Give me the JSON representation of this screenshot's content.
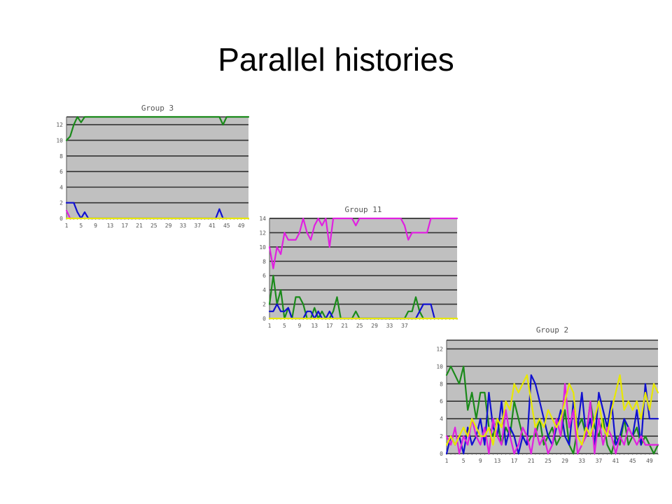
{
  "slide": {
    "title": "Parallel histories"
  },
  "chart_data": [
    {
      "type": "line",
      "title": "Group 3",
      "xlabel": "",
      "ylabel": "",
      "x_ticks": [
        "1",
        "5",
        "9",
        "13",
        "17",
        "21",
        "25",
        "29",
        "33",
        "37",
        "41",
        "45",
        "49"
      ],
      "y_ticks": [
        "0",
        "2",
        "4",
        "6",
        "8",
        "10",
        "12"
      ],
      "ylim": [
        0,
        13
      ],
      "xlim": [
        1,
        51
      ],
      "grid": true,
      "background": "#c0c0c0",
      "series": [
        {
          "color": "#1a8a1a",
          "x": [
            1,
            2,
            3,
            4,
            5,
            6,
            43,
            44,
            45,
            51
          ],
          "y": [
            10,
            10.5,
            12,
            13,
            12.3,
            13,
            13,
            12,
            13,
            13
          ]
        },
        {
          "color": "#1010d0",
          "x": [
            1,
            2,
            3,
            4,
            5,
            6,
            7,
            42,
            43,
            44,
            45
          ],
          "y": [
            2,
            2,
            2,
            0.8,
            0,
            0.8,
            0,
            0,
            1.2,
            0,
            0
          ]
        },
        {
          "color": "#e020e0",
          "x": [
            1,
            2,
            3
          ],
          "y": [
            1,
            0,
            0
          ]
        },
        {
          "color": "#e8e800",
          "x": [
            1,
            51
          ],
          "y": [
            0,
            0
          ]
        }
      ]
    },
    {
      "type": "line",
      "title": "Group 11",
      "xlabel": "",
      "ylabel": "",
      "x_ticks": [
        "1",
        "5",
        "9",
        "13",
        "17",
        "21",
        "25",
        "29",
        "33",
        "37"
      ],
      "y_ticks": [
        "0",
        "2",
        "4",
        "6",
        "8",
        "10",
        "12",
        "14"
      ],
      "ylim": [
        0,
        14
      ],
      "xlim": [
        1,
        51
      ],
      "grid": true,
      "background": "#c0c0c0",
      "series": [
        {
          "color": "#e020e0",
          "x": [
            1,
            2,
            3,
            4,
            5,
            6,
            7,
            8,
            9,
            10,
            11,
            12,
            13,
            14,
            15,
            16,
            17,
            18,
            19,
            20,
            21,
            22,
            23,
            24,
            25,
            26,
            36,
            37,
            38,
            39,
            40,
            41,
            42,
            43,
            44,
            51
          ],
          "y": [
            10,
            7,
            10,
            9,
            12,
            11,
            11,
            11,
            12,
            14,
            12,
            11,
            13,
            14,
            13,
            14,
            10,
            14,
            14,
            14,
            14,
            14,
            14,
            13,
            14,
            14,
            14,
            13,
            11,
            12,
            12,
            12,
            12,
            12,
            14,
            14
          ]
        },
        {
          "color": "#1a8a1a",
          "x": [
            1,
            2,
            3,
            4,
            5,
            6,
            7,
            8,
            9,
            10,
            11,
            12,
            13,
            14,
            15,
            16,
            17,
            18,
            19,
            20,
            21,
            22,
            23,
            24,
            25,
            26,
            27,
            37,
            38,
            39,
            40,
            41,
            42
          ],
          "y": [
            2,
            6,
            2,
            4,
            0,
            1.5,
            0,
            3,
            3,
            2,
            0,
            0,
            1.5,
            0,
            1,
            0,
            0,
            1,
            3,
            0,
            0,
            0,
            0,
            1,
            0,
            0,
            0,
            0,
            1,
            1,
            3,
            1,
            0
          ]
        },
        {
          "color": "#1010d0",
          "x": [
            1,
            2,
            3,
            4,
            5,
            6,
            7,
            8,
            9,
            10,
            11,
            12,
            13,
            14,
            15,
            16,
            17,
            18,
            19,
            20,
            21,
            22,
            40,
            41,
            42,
            43,
            44,
            45
          ],
          "y": [
            1,
            1,
            2,
            1,
            1,
            1.5,
            0,
            0,
            0,
            0,
            1,
            1,
            0,
            1,
            0,
            0,
            1,
            0,
            0,
            0,
            0,
            0,
            0,
            1,
            2,
            2,
            2,
            0
          ]
        },
        {
          "color": "#e8e800",
          "x": [
            1,
            51
          ],
          "y": [
            0,
            0
          ]
        }
      ]
    },
    {
      "type": "line",
      "title": "Group 2",
      "xlabel": "",
      "ylabel": "",
      "x_ticks": [
        "1",
        "5",
        "9",
        "13",
        "17",
        "21",
        "25",
        "29",
        "33",
        "37",
        "41",
        "45",
        "49"
      ],
      "y_ticks": [
        "0",
        "2",
        "4",
        "6",
        "8",
        "10",
        "12"
      ],
      "ylim": [
        0,
        13
      ],
      "xlim": [
        1,
        51
      ],
      "grid": true,
      "background": "#c0c0c0",
      "series": [
        {
          "color": "#1a8a1a",
          "x": [
            1,
            2,
            3,
            4,
            5,
            6,
            7,
            8,
            9,
            10,
            11,
            12,
            13,
            14,
            15,
            16,
            17,
            18,
            19,
            20,
            21,
            22,
            23,
            24,
            25,
            26,
            27,
            28,
            29,
            30,
            31,
            32,
            33,
            34,
            35,
            36,
            37,
            38,
            39,
            40,
            41,
            42,
            43,
            44,
            45,
            46,
            47,
            48,
            49,
            50,
            51
          ],
          "y": [
            9,
            10,
            9,
            8,
            10,
            5,
            7,
            4,
            7,
            7,
            3,
            2,
            4,
            1,
            3,
            2,
            6,
            4,
            2,
            1,
            2,
            2,
            4,
            1,
            2,
            3,
            1,
            2,
            5,
            1,
            0,
            3,
            4,
            2,
            6,
            3,
            2,
            4,
            1,
            0,
            2,
            1,
            4,
            1,
            2,
            3,
            1,
            2,
            1,
            0,
            1
          ]
        },
        {
          "color": "#1010d0",
          "x": [
            1,
            2,
            3,
            4,
            5,
            6,
            7,
            8,
            9,
            10,
            11,
            12,
            13,
            14,
            15,
            16,
            17,
            18,
            19,
            20,
            21,
            22,
            23,
            24,
            25,
            26,
            27,
            28,
            29,
            30,
            31,
            32,
            33,
            34,
            35,
            36,
            37,
            38,
            39,
            40,
            41,
            42,
            43,
            44,
            45,
            46,
            47,
            48,
            49,
            50,
            51
          ],
          "y": [
            0,
            2,
            1,
            2,
            0,
            3,
            1,
            2,
            4,
            1,
            7,
            3,
            2,
            6,
            1,
            3,
            2,
            0,
            2,
            1,
            9,
            8,
            6,
            4,
            2,
            1,
            3,
            5,
            2,
            1,
            6,
            3,
            7,
            2,
            4,
            1,
            7,
            5,
            3,
            6,
            1,
            2,
            4,
            3,
            2,
            5,
            1,
            8,
            4,
            4,
            4
          ]
        },
        {
          "color": "#e020e0",
          "x": [
            1,
            2,
            3,
            4,
            5,
            6,
            7,
            8,
            9,
            10,
            11,
            12,
            13,
            14,
            15,
            16,
            17,
            18,
            19,
            20,
            21,
            22,
            23,
            24,
            25,
            26,
            27,
            28,
            29,
            30,
            31,
            32,
            33,
            34,
            35,
            36,
            37,
            38,
            39,
            40,
            41,
            42,
            43,
            44,
            45,
            46,
            47,
            48,
            49,
            50,
            51
          ],
          "y": [
            2,
            1,
            3,
            0,
            2,
            1,
            4,
            2,
            1,
            3,
            0,
            4,
            2,
            1,
            5,
            2,
            0,
            1,
            3,
            2,
            0,
            3,
            1,
            2,
            0,
            1,
            4,
            2,
            8,
            3,
            5,
            0,
            1,
            2,
            6,
            0,
            4,
            1,
            3,
            2,
            0,
            2,
            1,
            3,
            2,
            1,
            2,
            1,
            1,
            1,
            1
          ]
        },
        {
          "color": "#e8e800",
          "x": [
            1,
            2,
            3,
            4,
            5,
            6,
            7,
            8,
            9,
            10,
            11,
            12,
            13,
            14,
            15,
            16,
            17,
            18,
            19,
            20,
            21,
            22,
            23,
            24,
            25,
            26,
            27,
            28,
            29,
            30,
            31,
            32,
            33,
            34,
            35,
            36,
            37,
            38,
            39,
            40,
            41,
            42,
            43,
            44,
            45,
            46,
            47,
            48,
            49,
            50,
            51
          ],
          "y": [
            1,
            2,
            1,
            2,
            3,
            2,
            4,
            3,
            2,
            2,
            3,
            1,
            4,
            3,
            6,
            5,
            8,
            7,
            8,
            9,
            6,
            3,
            4,
            3,
            5,
            4,
            3,
            4,
            6,
            8,
            7,
            2,
            1,
            3,
            2,
            4,
            6,
            3,
            2,
            5,
            7,
            9,
            5,
            6,
            5,
            6,
            4,
            7,
            5,
            8,
            7
          ]
        }
      ]
    }
  ]
}
